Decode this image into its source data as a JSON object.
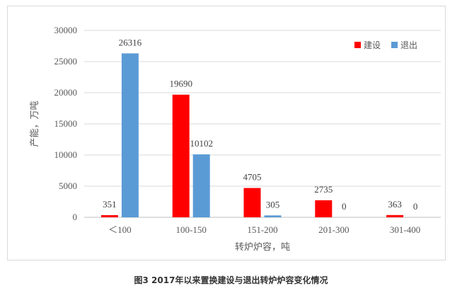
{
  "caption": "图3  2017年以来置换建设与退出转炉炉容变化情况",
  "chart_data": {
    "type": "bar",
    "title": "",
    "categories": [
      "＜100",
      "100-150",
      "151-200",
      "201-300",
      "301-400"
    ],
    "series": [
      {
        "name": "建设",
        "color": "#ff0000",
        "values": [
          351,
          19690,
          4705,
          2735,
          363
        ]
      },
      {
        "name": "退出",
        "color": "#5b9bd5",
        "values": [
          26316,
          10102,
          305,
          0,
          0
        ]
      }
    ],
    "xlabel": "转炉炉容，吨",
    "ylabel": "产能，万吨",
    "ylim": [
      0,
      30000
    ],
    "yticks": [
      0,
      5000,
      10000,
      15000,
      20000,
      25000,
      30000
    ],
    "grid": true,
    "legend_position": "top-right"
  }
}
